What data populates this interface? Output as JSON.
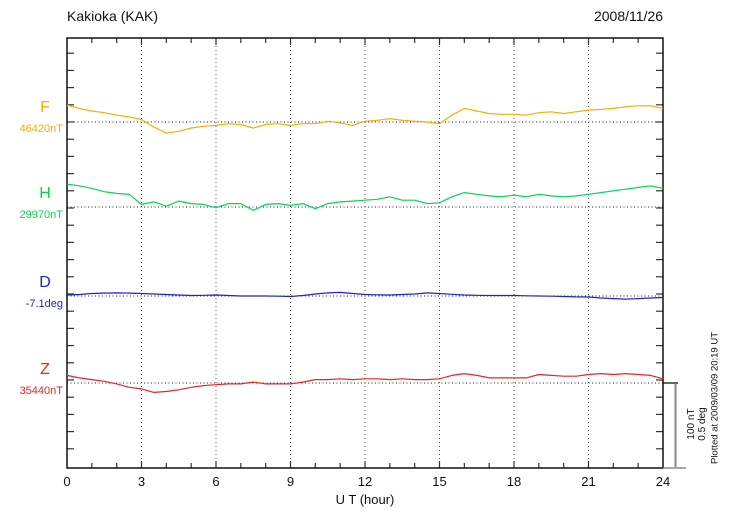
{
  "header": {
    "title": "Kakioka (KAK)",
    "date": "2008/11/26"
  },
  "x_axis": {
    "label": "U T (hour)",
    "tick_labels": [
      "0",
      "3",
      "6",
      "9",
      "12",
      "15",
      "18",
      "21",
      "24"
    ]
  },
  "channels": [
    {
      "letter": "F",
      "base_label": "46420nT",
      "color": "#ffaa00"
    },
    {
      "letter": "H",
      "base_label": "29970nT",
      "color": "#00d948"
    },
    {
      "letter": "D",
      "base_label": "-7.1deg",
      "color": "#2222cc"
    },
    {
      "letter": "Z",
      "base_label": "35440nT",
      "color": "#ee2222"
    }
  ],
  "scale_bar": {
    "line1": "100 nT",
    "line2": "0.5 deg"
  },
  "plotted_note": "Plotted at 2009/03/09 20:19 UT",
  "chart_data": {
    "type": "line",
    "title": "Kakioka (KAK) magnetogram",
    "date": "2008/11/26",
    "xlabel": "U T (hour)",
    "x_range": [
      0,
      24
    ],
    "x_major_tick_hours": 3,
    "x_minor_tick_hours": 1,
    "grid": "dotted vertical gridlines every 3 h; dotted horizontal baseline per channel",
    "scale": {
      "nT_per_bar": 100,
      "deg_per_bar": 0.5
    },
    "x_hours": [
      0,
      0.5,
      1,
      1.5,
      2,
      2.5,
      3,
      3.5,
      4,
      4.5,
      5,
      5.5,
      6,
      6.5,
      7,
      7.5,
      8,
      8.5,
      9,
      9.5,
      10,
      10.5,
      11,
      11.5,
      12,
      12.5,
      13,
      13.5,
      14,
      14.5,
      15,
      15.5,
      16,
      16.5,
      17,
      17.5,
      18,
      18.5,
      19,
      19.5,
      20,
      20.5,
      21,
      21.5,
      22,
      22.5,
      23,
      23.5,
      24
    ],
    "series": [
      {
        "name": "F",
        "unit": "nT",
        "baseline_value": 46420,
        "color": "#ffaa00",
        "values": [
          46440,
          46436,
          46433,
          46431,
          46428,
          46426,
          46423,
          46414,
          46407,
          46409,
          46413,
          46415,
          46416,
          46418,
          46417,
          46413,
          46417,
          46418,
          46416,
          46418,
          46418,
          46421,
          46419,
          46416,
          46421,
          46422,
          46424,
          46422,
          46421,
          46420,
          46418,
          46428,
          46436,
          46433,
          46430,
          46429,
          46429,
          46428,
          46431,
          46432,
          46430,
          46432,
          46434,
          46435,
          46436,
          46438,
          46439,
          46439,
          46436
        ]
      },
      {
        "name": "H",
        "unit": "nT",
        "baseline_value": 29970,
        "color": "#00d948",
        "values": [
          29997,
          29995,
          29992,
          29988,
          29986,
          29985,
          29973,
          29976,
          29971,
          29977,
          29974,
          29973,
          29969,
          29974,
          29974,
          29966,
          29973,
          29974,
          29972,
          29974,
          29968,
          29974,
          29976,
          29977,
          29978,
          29979,
          29982,
          29978,
          29978,
          29974,
          29975,
          29982,
          29987,
          29985,
          29983,
          29982,
          29984,
          29982,
          29985,
          29983,
          29982,
          29983,
          29985,
          29987,
          29989,
          29991,
          29993,
          29995,
          29992
        ]
      },
      {
        "name": "D",
        "unit": "deg",
        "baseline_value": -7.1,
        "color": "#2222cc",
        "values": [
          -7.094,
          -7.091,
          -7.085,
          -7.083,
          -7.082,
          -7.083,
          -7.085,
          -7.088,
          -7.091,
          -7.094,
          -7.097,
          -7.096,
          -7.094,
          -7.097,
          -7.1,
          -7.1,
          -7.1,
          -7.101,
          -7.103,
          -7.097,
          -7.088,
          -7.082,
          -7.079,
          -7.085,
          -7.091,
          -7.093,
          -7.094,
          -7.091,
          -7.088,
          -7.082,
          -7.085,
          -7.09,
          -7.094,
          -7.096,
          -7.097,
          -7.097,
          -7.097,
          -7.099,
          -7.1,
          -7.101,
          -7.103,
          -7.105,
          -7.106,
          -7.112,
          -7.115,
          -7.118,
          -7.115,
          -7.112,
          -7.109
        ]
      },
      {
        "name": "Z",
        "unit": "nT",
        "baseline_value": 35440,
        "color": "#ee2222",
        "values": [
          35449,
          35446,
          35444,
          35442,
          35439,
          35435,
          35433,
          35429,
          35430,
          35432,
          35435,
          35437,
          35438,
          35439,
          35439,
          35441,
          35439,
          35439,
          35439,
          35441,
          35444,
          35444,
          35445,
          35444,
          35445,
          35445,
          35444,
          35445,
          35444,
          35444,
          35445,
          35449,
          35451,
          35449,
          35446,
          35446,
          35446,
          35446,
          35450,
          35449,
          35448,
          35448,
          35450,
          35451,
          35450,
          35451,
          35450,
          35449,
          35445
        ]
      }
    ]
  }
}
